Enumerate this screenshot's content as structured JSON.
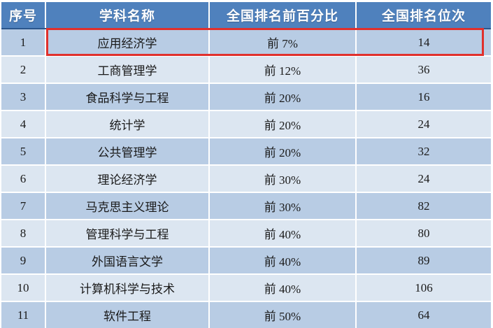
{
  "table": {
    "columns": [
      {
        "label": "序号"
      },
      {
        "label": "学科名称"
      },
      {
        "label": "全国排名前百分比"
      },
      {
        "label": "全国排名位次"
      }
    ],
    "rows": [
      {
        "index": "1",
        "name": "应用经济学",
        "percent": "前 7%",
        "rank": "14",
        "highlighted": true
      },
      {
        "index": "2",
        "name": "工商管理学",
        "percent": "前 12%",
        "rank": "36"
      },
      {
        "index": "3",
        "name": "食品科学与工程",
        "percent": "前 20%",
        "rank": "16"
      },
      {
        "index": "4",
        "name": "统计学",
        "percent": "前 20%",
        "rank": "24"
      },
      {
        "index": "5",
        "name": "公共管理学",
        "percent": "前 20%",
        "rank": "32"
      },
      {
        "index": "6",
        "name": "理论经济学",
        "percent": "前 30%",
        "rank": "24"
      },
      {
        "index": "7",
        "name": "马克思主义理论",
        "percent": "前 30%",
        "rank": "82"
      },
      {
        "index": "8",
        "name": "管理科学与工程",
        "percent": "前 40%",
        "rank": "80"
      },
      {
        "index": "9",
        "name": "外国语言文学",
        "percent": "前 40%",
        "rank": "89"
      },
      {
        "index": "10",
        "name": "计算机科学与技术",
        "percent": "前 40%",
        "rank": "106"
      },
      {
        "index": "11",
        "name": "软件工程",
        "percent": "前 50%",
        "rank": "64"
      }
    ],
    "colors": {
      "header_bg": "#4f81bd",
      "header_border": "#2b568c",
      "row_odd": "#b8cce4",
      "row_even": "#dce6f1",
      "highlight": "#e0302c",
      "text": "#1a1a1a",
      "header_text": "#ffffff"
    }
  }
}
